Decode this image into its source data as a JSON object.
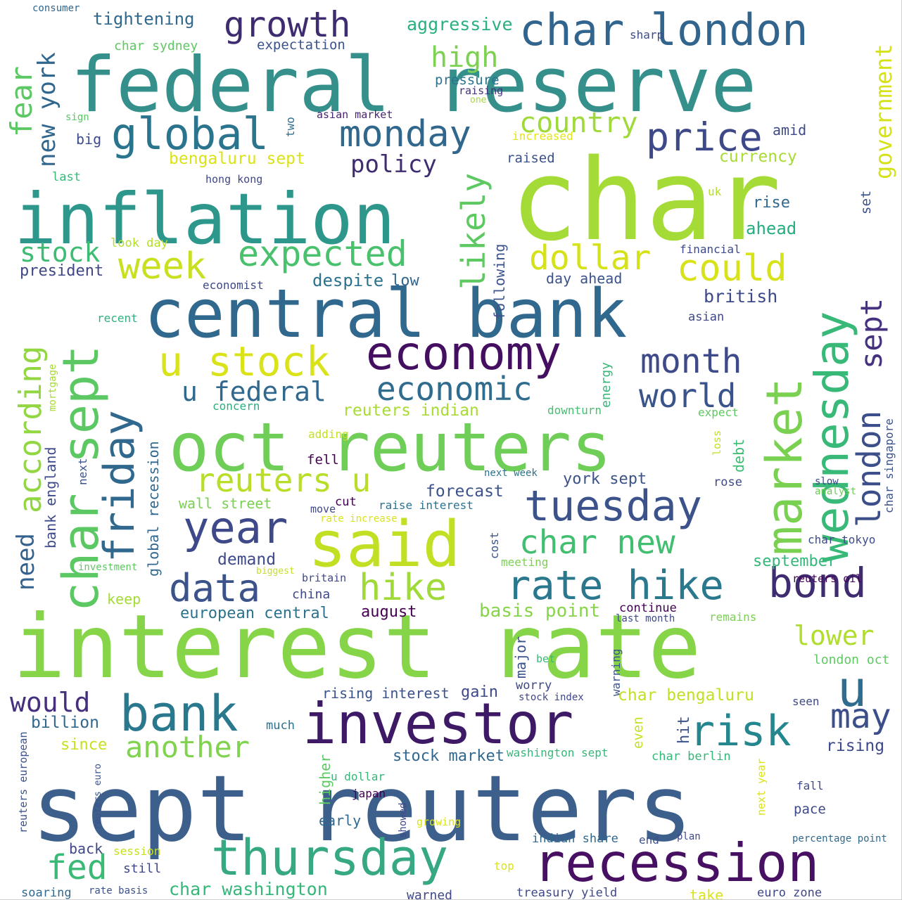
{
  "words": [
    {
      "text": "federal reserve",
      "color": "#35908c"
    },
    {
      "text": "char",
      "color": "#a5db36"
    },
    {
      "text": "inflation",
      "color": "#2e978c"
    },
    {
      "text": "interest rate",
      "color": "#86d549"
    },
    {
      "text": "sept reuters",
      "color": "#3d5f8b"
    },
    {
      "text": "central bank",
      "color": "#31688e"
    },
    {
      "text": "oct reuters",
      "color": "#6ece58"
    },
    {
      "text": "said",
      "color": "#c2df23"
    },
    {
      "text": "investor",
      "color": "#3e1a66"
    },
    {
      "text": "recession",
      "color": "#471063"
    },
    {
      "text": "thursday",
      "color": "#36a883"
    },
    {
      "text": "bank",
      "color": "#2a788e"
    },
    {
      "text": "economy",
      "color": "#440f60"
    },
    {
      "text": "char london",
      "color": "#32658e"
    },
    {
      "text": "growth",
      "color": "#3f2c70"
    },
    {
      "text": "global",
      "color": "#2b748e"
    },
    {
      "text": "monday",
      "color": "#30678d"
    },
    {
      "text": "price",
      "color": "#3e4989"
    },
    {
      "text": "wednesday",
      "color": "#38b977"
    },
    {
      "text": "market",
      "color": "#7ad151"
    },
    {
      "text": "char sept",
      "color": "#5cc863"
    },
    {
      "text": "tuesday",
      "color": "#3b528b"
    },
    {
      "text": "rate hike",
      "color": "#2a788e"
    },
    {
      "text": "year",
      "color": "#3e4989"
    },
    {
      "text": "friday",
      "color": "#31688e"
    },
    {
      "text": "u stock",
      "color": "#dae319"
    },
    {
      "text": "week",
      "color": "#c8e020"
    },
    {
      "text": "expected",
      "color": "#4ac16d"
    },
    {
      "text": "hike",
      "color": "#a0da39"
    },
    {
      "text": "data",
      "color": "#3b528b"
    },
    {
      "text": "bond",
      "color": "#3f2c70"
    },
    {
      "text": "economic",
      "color": "#2f6c8e"
    },
    {
      "text": "could",
      "color": "#d8e219"
    },
    {
      "text": "dollar",
      "color": "#d5e21a"
    },
    {
      "text": "u",
      "color": "#2f6c8e"
    },
    {
      "text": "may",
      "color": "#3c4f8a"
    },
    {
      "text": "risk",
      "color": "#24868e"
    },
    {
      "text": "month",
      "color": "#3e4a89"
    },
    {
      "text": "world",
      "color": "#3a538b"
    },
    {
      "text": "reuters u",
      "color": "#b8de29"
    },
    {
      "text": "char new",
      "color": "#42be71"
    },
    {
      "text": "another",
      "color": "#7fd34e"
    },
    {
      "text": "fed",
      "color": "#3aba76"
    },
    {
      "text": "u federal",
      "color": "#31688e"
    },
    {
      "text": "likely",
      "color": "#5ec962"
    },
    {
      "text": "according",
      "color": "#92d742"
    },
    {
      "text": "need",
      "color": "#34618d"
    },
    {
      "text": "london",
      "color": "#3c4f8a"
    },
    {
      "text": "sept",
      "color": "#46317e"
    },
    {
      "text": "fear",
      "color": "#5cc863"
    },
    {
      "text": "new york",
      "color": "#31678e"
    },
    {
      "text": "stock",
      "color": "#3ebc73"
    },
    {
      "text": "country",
      "color": "#9fda3a"
    },
    {
      "text": "high",
      "color": "#7cd250"
    },
    {
      "text": "policy",
      "color": "#3f2d70"
    },
    {
      "text": "government",
      "color": "#d5e21a"
    },
    {
      "text": "would",
      "color": "#46307e"
    },
    {
      "text": "lower",
      "color": "#b0dd2f"
    },
    {
      "text": "tightening",
      "color": "#31688e"
    },
    {
      "text": "aggressive",
      "color": "#2ab07f"
    },
    {
      "text": "consumer",
      "color": "#31668e"
    },
    {
      "text": "char sydney",
      "color": "#5ec962"
    },
    {
      "text": "expectation",
      "color": "#3a538b"
    },
    {
      "text": "sharp",
      "color": "#3d4d8a"
    },
    {
      "text": "pressure",
      "color": "#2c738e"
    },
    {
      "text": "raising",
      "color": "#46317e"
    },
    {
      "text": "one",
      "color": "#a5db36"
    },
    {
      "text": "sign",
      "color": "#5ac864"
    },
    {
      "text": "two",
      "color": "#2d708e"
    },
    {
      "text": "asian market",
      "color": "#482475"
    },
    {
      "text": "increased",
      "color": "#e5e419"
    },
    {
      "text": "amid",
      "color": "#3e4a89"
    },
    {
      "text": "big",
      "color": "#3e4c8a"
    },
    {
      "text": "bengaluru sept",
      "color": "#dae319"
    },
    {
      "text": "currency",
      "color": "#a8db34"
    },
    {
      "text": "raised",
      "color": "#3b518b"
    },
    {
      "text": "last",
      "color": "#38b977"
    },
    {
      "text": "hong kong",
      "color": "#3f4788"
    },
    {
      "text": "uk",
      "color": "#b5de2b"
    },
    {
      "text": "rise",
      "color": "#31688e"
    },
    {
      "text": "set",
      "color": "#3b528b"
    },
    {
      "text": "ahead",
      "color": "#26ad81"
    },
    {
      "text": "look day",
      "color": "#b5de2b"
    },
    {
      "text": "president",
      "color": "#3f4788"
    },
    {
      "text": "following",
      "color": "#3b528b"
    },
    {
      "text": "financial",
      "color": "#3e4a89"
    },
    {
      "text": "day ahead",
      "color": "#3a538b"
    },
    {
      "text": "british",
      "color": "#3e4989"
    },
    {
      "text": "despite",
      "color": "#2c728e"
    },
    {
      "text": "low",
      "color": "#31678e"
    },
    {
      "text": "economist",
      "color": "#3e4a89"
    },
    {
      "text": "asian",
      "color": "#3f4788"
    },
    {
      "text": "recent",
      "color": "#2db27d"
    },
    {
      "text": "mortgage",
      "color": "#a5db36"
    },
    {
      "text": "concern",
      "color": "#2ab07f"
    },
    {
      "text": "reuters indian",
      "color": "#a8db34"
    },
    {
      "text": "downturn",
      "color": "#45bf70"
    },
    {
      "text": "energy",
      "color": "#35b779"
    },
    {
      "text": "expect",
      "color": "#5ec962"
    },
    {
      "text": "char singapore",
      "color": "#3b528b"
    },
    {
      "text": "loss",
      "color": "#c2df23"
    },
    {
      "text": "debt",
      "color": "#3dbc74"
    },
    {
      "text": "adding",
      "color": "#c8e020"
    },
    {
      "text": "fell",
      "color": "#440154"
    },
    {
      "text": "next week",
      "color": "#2c728e"
    },
    {
      "text": "rose",
      "color": "#3e4989"
    },
    {
      "text": "slow",
      "color": "#3f4788"
    },
    {
      "text": "analyst",
      "color": "#6ece58"
    },
    {
      "text": "bank england",
      "color": "#3e4989"
    },
    {
      "text": "global recession",
      "color": "#31688e"
    },
    {
      "text": "next",
      "color": "#3a538b"
    },
    {
      "text": "york sept",
      "color": "#3b528b"
    },
    {
      "text": "forecast",
      "color": "#3b528b"
    },
    {
      "text": "wall street",
      "color": "#7ad151"
    },
    {
      "text": "move",
      "color": "#3f4788"
    },
    {
      "text": "cut",
      "color": "#440154"
    },
    {
      "text": "raise interest",
      "color": "#2c728e"
    },
    {
      "text": "rate increase",
      "color": "#dae319"
    },
    {
      "text": "cost",
      "color": "#3b528b"
    },
    {
      "text": "meeting",
      "color": "#7ad151"
    },
    {
      "text": "char tokyo",
      "color": "#3e4c8a"
    },
    {
      "text": "demand",
      "color": "#3e4a89"
    },
    {
      "text": "investment",
      "color": "#5ec962"
    },
    {
      "text": "biggest",
      "color": "#c8e020"
    },
    {
      "text": "britain",
      "color": "#3f4788"
    },
    {
      "text": "september",
      "color": "#35b779"
    },
    {
      "text": "reuters oil",
      "color": "#440154"
    },
    {
      "text": "keep",
      "color": "#a5db36"
    },
    {
      "text": "china",
      "color": "#3e4989"
    },
    {
      "text": "european central",
      "color": "#2c728e"
    },
    {
      "text": "august",
      "color": "#440154"
    },
    {
      "text": "basis point",
      "color": "#86d549"
    },
    {
      "text": "continue",
      "color": "#440154"
    },
    {
      "text": "last month",
      "color": "#3e4989"
    },
    {
      "text": "remains",
      "color": "#7ad151"
    },
    {
      "text": "major",
      "color": "#3b528b"
    },
    {
      "text": "bet",
      "color": "#38b977"
    },
    {
      "text": "warning",
      "color": "#3b528b"
    },
    {
      "text": "london oct",
      "color": "#5ec962"
    },
    {
      "text": "worry",
      "color": "#3f4788"
    },
    {
      "text": "stock index",
      "color": "#3f4788"
    },
    {
      "text": "rising interest",
      "color": "#3b528b"
    },
    {
      "text": "gain",
      "color": "#3e4989"
    },
    {
      "text": "char bengaluru",
      "color": "#c2df23"
    },
    {
      "text": "seen",
      "color": "#3e4989"
    },
    {
      "text": "billion",
      "color": "#31688e"
    },
    {
      "text": "much",
      "color": "#2c728e"
    },
    {
      "text": "even",
      "color": "#c8e020"
    },
    {
      "text": "hit",
      "color": "#3b528b"
    },
    {
      "text": "rising",
      "color": "#3e4989"
    },
    {
      "text": "since",
      "color": "#c8e020"
    },
    {
      "text": "stock market",
      "color": "#31688e"
    },
    {
      "text": "washington sept",
      "color": "#35b779"
    },
    {
      "text": "char berlin",
      "color": "#35b779"
    },
    {
      "text": "reuters european",
      "color": "#3b528b"
    },
    {
      "text": "reuters euro",
      "color": "#3b528b"
    },
    {
      "text": "higher",
      "color": "#5ec962"
    },
    {
      "text": "u dollar",
      "color": "#35b779"
    },
    {
      "text": "japan",
      "color": "#440154"
    },
    {
      "text": "next year",
      "color": "#dae319"
    },
    {
      "text": "fall",
      "color": "#3e4989"
    },
    {
      "text": "pace",
      "color": "#3e4989"
    },
    {
      "text": "early",
      "color": "#31688e"
    },
    {
      "text": "showed",
      "color": "#3e4989"
    },
    {
      "text": "growing",
      "color": "#dae319"
    },
    {
      "text": "back",
      "color": "#3f4788"
    },
    {
      "text": "session",
      "color": "#c8e020"
    },
    {
      "text": "indian share",
      "color": "#31688e"
    },
    {
      "text": "end",
      "color": "#3b528b"
    },
    {
      "text": "plan",
      "color": "#3e4989"
    },
    {
      "text": "percentage point",
      "color": "#31688e"
    },
    {
      "text": "still",
      "color": "#3f4788"
    },
    {
      "text": "top",
      "color": "#dae319"
    },
    {
      "text": "char washington",
      "color": "#35b779"
    },
    {
      "text": "soaring",
      "color": "#31688e"
    },
    {
      "text": "rate basis",
      "color": "#3b528b"
    },
    {
      "text": "warned",
      "color": "#3e4989"
    },
    {
      "text": "treasury yield",
      "color": "#3e4989"
    },
    {
      "text": "take",
      "color": "#dae319"
    },
    {
      "text": "euro zone",
      "color": "#3f4788"
    }
  ]
}
